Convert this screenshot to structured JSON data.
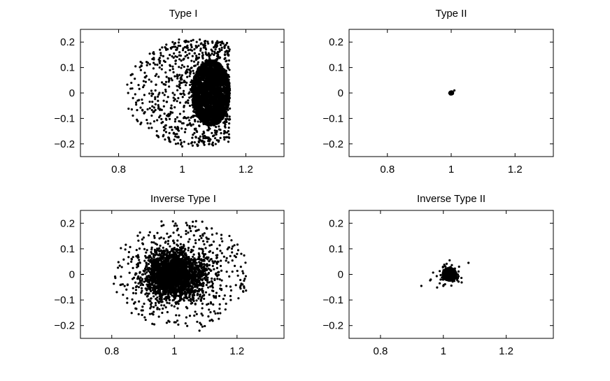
{
  "chart_data": [
    {
      "type": "scatter",
      "title": "Type I",
      "xlim": [
        0.68,
        1.32
      ],
      "ylim": [
        -0.25,
        0.25
      ],
      "xticks": [
        0.8,
        1,
        1.2
      ],
      "xtick_labels": [
        "0.8",
        "1",
        "1.2"
      ],
      "yticks": [
        -0.2,
        -0.1,
        0,
        0.1,
        0.2
      ],
      "ytick_labels": [
        "−0.2",
        "−0.1",
        "0",
        "0.1",
        "0.2"
      ],
      "grid": false,
      "cloud": {
        "cx": 1.09,
        "cy": 0.0,
        "rx": 0.06,
        "ry": 0.13,
        "sparse_left": 0.82,
        "spread_top": 0.205,
        "spread_bottom": -0.21
      },
      "x": [
        0.83,
        0.84,
        0.86,
        0.87,
        0.88,
        0.89,
        0.9,
        0.91,
        0.92,
        0.93,
        0.94,
        0.95,
        0.96,
        0.97,
        0.98,
        0.99,
        1.0,
        1.01,
        1.02,
        1.03
      ],
      "y": [
        0.0,
        0.04,
        -0.03,
        0.09,
        -0.08,
        0.12,
        -0.12,
        0.16,
        -0.15,
        0.17,
        -0.17,
        0.19,
        -0.19,
        0.2,
        -0.2,
        0.21,
        -0.21,
        0.2,
        -0.2,
        0.18
      ]
    },
    {
      "type": "scatter",
      "title": "Type II",
      "xlim": [
        0.68,
        1.32
      ],
      "ylim": [
        -0.25,
        0.25
      ],
      "xticks": [
        0.8,
        1,
        1.2
      ],
      "xtick_labels": [
        "0.8",
        "1",
        "1.2"
      ],
      "yticks": [
        -0.2,
        -0.1,
        0,
        0.1,
        0.2
      ],
      "ytick_labels": [
        "−0.2",
        "−0.1",
        "0",
        "0.1",
        "0.2"
      ],
      "grid": false,
      "cloud": {
        "cx": 1.0,
        "cy": 0.0,
        "rx": 0.006,
        "ry": 0.006
      },
      "x": [
        1.0,
        1.005,
        0.997,
        1.003,
        1.01
      ],
      "y": [
        0.0,
        0.003,
        -0.004,
        0.006,
        0.01
      ]
    },
    {
      "type": "scatter",
      "title": "Inverse Type I",
      "xlim": [
        0.7,
        1.35
      ],
      "ylim": [
        -0.25,
        0.25
      ],
      "xticks": [
        0.8,
        1,
        1.2
      ],
      "xtick_labels": [
        "0.8",
        "1",
        "1.2"
      ],
      "yticks": [
        -0.2,
        -0.1,
        0,
        0.1,
        0.2
      ],
      "ytick_labels": [
        "−0.2",
        "−0.1",
        "0",
        "0.1",
        "0.2"
      ],
      "grid": false,
      "cloud": {
        "cx": 1.0,
        "cy": 0.0,
        "rx": 0.05,
        "ry": 0.06
      },
      "x": [
        0.83,
        0.9,
        1.2,
        1.18,
        1.21,
        1.0,
        1.08,
        1.05,
        0.94,
        1.15
      ],
      "y": [
        -0.04,
        0.0,
        0.08,
        -0.1,
        -0.05,
        0.19,
        -0.22,
        0.18,
        0.12,
        0.14
      ]
    },
    {
      "type": "scatter",
      "title": "Inverse Type II",
      "xlim": [
        0.7,
        1.35
      ],
      "ylim": [
        -0.25,
        0.25
      ],
      "xticks": [
        0.8,
        1,
        1.2
      ],
      "xtick_labels": [
        "0.8",
        "1",
        "1.2"
      ],
      "yticks": [
        -0.2,
        -0.1,
        0,
        0.1,
        0.2
      ],
      "ytick_labels": [
        "−0.2",
        "−0.1",
        "0",
        "0.1",
        "0.2"
      ],
      "grid": false,
      "cloud": {
        "cx": 1.02,
        "cy": 0.0,
        "rx": 0.022,
        "ry": 0.025
      },
      "x": [
        0.93,
        0.96,
        1.08,
        1.05,
        1.02,
        1.0
      ],
      "y": [
        -0.045,
        -0.02,
        0.045,
        0.03,
        0.055,
        -0.045
      ]
    }
  ]
}
